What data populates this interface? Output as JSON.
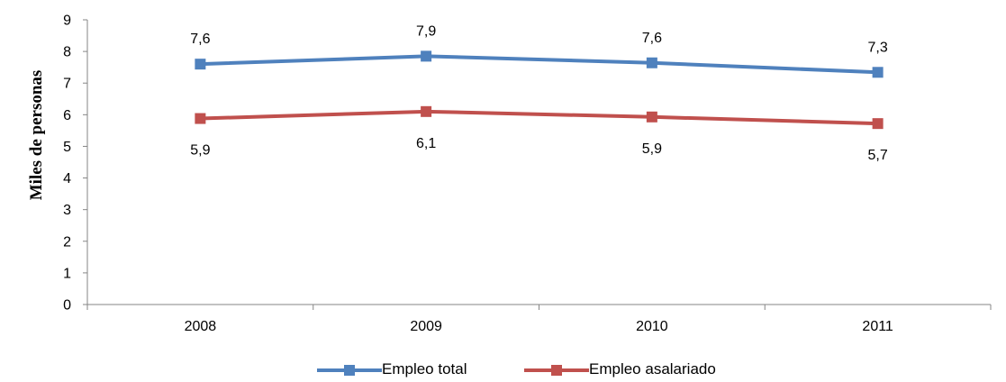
{
  "chart_data": {
    "type": "line",
    "ylabel": "Miles de personas",
    "xlabel": "",
    "categories": [
      "2008",
      "2009",
      "2010",
      "2011"
    ],
    "ylim": [
      0,
      9
    ],
    "yticks": [
      "0",
      "1",
      "2",
      "3",
      "4",
      "5",
      "6",
      "7",
      "8",
      "9"
    ],
    "grid": false,
    "legend_position": "bottom",
    "series": [
      {
        "name": "Empleo total",
        "color": "#4F81BD",
        "values": [
          7.6,
          7.85,
          7.64,
          7.34
        ],
        "labels": [
          "7,6",
          "7,9",
          "7,6",
          "7,3"
        ],
        "label_position": "above"
      },
      {
        "name": "Empleo asalariado",
        "color": "#C0504D",
        "values": [
          5.88,
          6.1,
          5.93,
          5.72
        ],
        "labels": [
          "5,9",
          "6,1",
          "5,9",
          "5,7"
        ],
        "label_position": "below"
      }
    ]
  }
}
